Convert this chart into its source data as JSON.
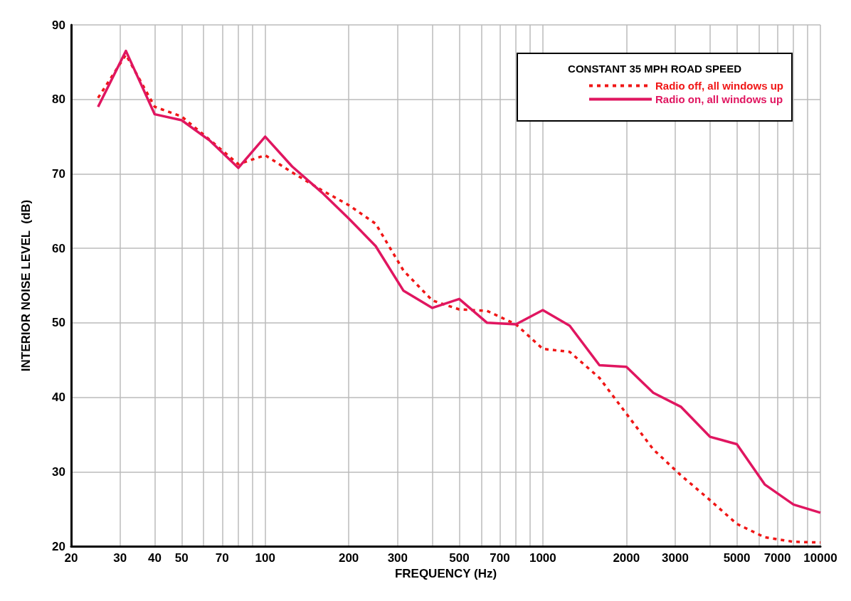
{
  "chart_data": {
    "type": "line",
    "xlabel": "FREQUENCY (Hz)",
    "ylabel": "INTERIOR NOISE LEVEL  (dB)",
    "legend_title": "CONSTANT 35 MPH ROAD SPEED",
    "legend": "top right",
    "grid": true,
    "log": "x",
    "marker": "none",
    "x": [
      25,
      31.5,
      40,
      50,
      63,
      80,
      100,
      125,
      160,
      200,
      250,
      315,
      400,
      500,
      630,
      800,
      1000,
      1250,
      1600,
      2000,
      2500,
      3150,
      4000,
      5000,
      6300,
      8000,
      10000
    ],
    "series": [
      {
        "name": "Radio off, all windows up",
        "color": "#f01616",
        "line_style": "dashed",
        "values": [
          80.2,
          86,
          79,
          77.7,
          74.6,
          71.3,
          72.5,
          70.2,
          67.8,
          65.8,
          63.3,
          57,
          53,
          51.8,
          51.6,
          49.8,
          46.5,
          46.1,
          42.6,
          37.8,
          33,
          29.5,
          26.2,
          23,
          21.2,
          20.6,
          20.5
        ]
      },
      {
        "name": "Radio on, all windows up",
        "color": "#e01660",
        "line_style": "solid",
        "values": [
          79,
          86.5,
          78,
          77.2,
          74.5,
          70.8,
          75,
          71,
          67.5,
          64,
          60.3,
          54.3,
          52,
          53.2,
          50,
          49.8,
          51.7,
          49.6,
          44.3,
          44.1,
          40.6,
          38.7,
          34.7,
          33.7,
          28.3,
          25.6,
          24.5
        ]
      }
    ],
    "xlim": [
      20,
      10000
    ],
    "ylim": [
      20,
      90
    ],
    "xticks": [
      20,
      30,
      40,
      50,
      {
        "value": 60,
        "label": null
      },
      70,
      {
        "value": 80,
        "label": null
      },
      {
        "value": 90,
        "label": null
      },
      100,
      200,
      300,
      {
        "value": 400,
        "label": null
      },
      500,
      {
        "value": 600,
        "label": null
      },
      700,
      {
        "value": 800,
        "label": null
      },
      {
        "value": 900,
        "label": null
      },
      1000,
      2000,
      3000,
      {
        "value": 4000,
        "label": null
      },
      5000,
      {
        "value": 6000,
        "label": null
      },
      7000,
      {
        "value": 8000,
        "label": null
      },
      {
        "value": 9000,
        "label": null
      },
      10000
    ],
    "yticks": [
      20,
      30,
      40,
      50,
      60,
      70,
      80,
      90
    ]
  }
}
